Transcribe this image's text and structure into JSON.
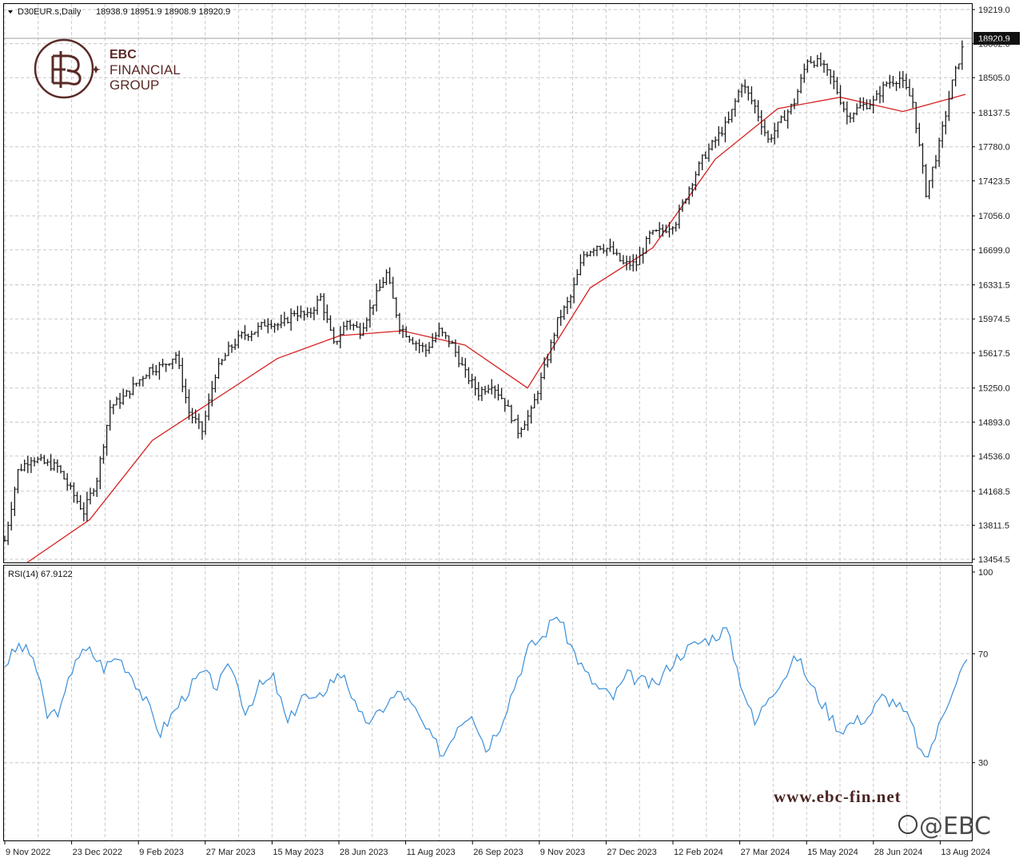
{
  "window": {
    "symbol_line": "D30EUR.s,Daily",
    "ohlc_line": "18938.9 18951.9 18908.9 18920.9",
    "menu_icon": "triangle-down-icon"
  },
  "logo": {
    "line1": "EBC",
    "line2": "FINANCIAL",
    "line3": "GROUP",
    "brand_color": "#5a2a27"
  },
  "current_price_label": "18920.9",
  "price_axis": {
    "ticks": [
      "19219.0",
      "18862.0",
      "18505.0",
      "18137.5",
      "17780.0",
      "17423.5",
      "17056.0",
      "16699.0",
      "16331.5",
      "15974.5",
      "15617.5",
      "15250.0",
      "14893.0",
      "14536.0",
      "14168.5",
      "13811.5",
      "13454.5"
    ]
  },
  "rsi_panel": {
    "label": "RSI(14) 67.9122",
    "ticks": [
      "100",
      "70",
      "30"
    ],
    "line_color": "#3b8fd9"
  },
  "time_axis": {
    "labels": [
      "9 Nov 2022",
      "23 Dec 2022",
      "9 Feb 2023",
      "27 Mar 2023",
      "15 May 2023",
      "28 Jun 2023",
      "11 Aug 2023",
      "26 Sep 2023",
      "9 Nov 2023",
      "27 Dec 2023",
      "12 Feb 2024",
      "27 Mar 2024",
      "15 May 2024",
      "28 Jun 2024",
      "13 Aug 2024"
    ]
  },
  "watermark": {
    "url": "www.ebc-fin.net",
    "corner": "@EBC"
  },
  "chart_data": {
    "type": "line",
    "title": "D30EUR.s,Daily",
    "price_range": [
      13454.5,
      19219.0
    ],
    "rsi_range": [
      0,
      100
    ],
    "colors": {
      "bars": "#1a1a1a",
      "ma": "#d62020",
      "rsi": "#3b8fd9",
      "grid": "#c8c8c8"
    },
    "series": [
      {
        "kind": "ohlc-bars",
        "points": [
          {
            "date": "9 Nov 2022",
            "close": 13650
          },
          {
            "date": "16 Nov 2022",
            "close": 14380
          },
          {
            "date": "23 Nov 2022",
            "close": 14520
          },
          {
            "date": "30 Nov 2022",
            "close": 14460
          },
          {
            "date": "7 Dec 2022",
            "close": 14420
          },
          {
            "date": "14 Dec 2022",
            "close": 14180
          },
          {
            "date": "23 Dec 2022",
            "close": 13950
          },
          {
            "date": "3 Jan 2023",
            "close": 14300
          },
          {
            "date": "13 Jan 2023",
            "close": 15050
          },
          {
            "date": "24 Jan 2023",
            "close": 15150
          },
          {
            "date": "2 Feb 2023",
            "close": 15300
          },
          {
            "date": "9 Feb 2023",
            "close": 15450
          },
          {
            "date": "20 Feb 2023",
            "close": 15480
          },
          {
            "date": "1 Mar 2023",
            "close": 15600
          },
          {
            "date": "10 Mar 2023",
            "close": 15000
          },
          {
            "date": "17 Mar 2023",
            "close": 14800
          },
          {
            "date": "27 Mar 2023",
            "close": 15400
          },
          {
            "date": "6 Apr 2023",
            "close": 15650
          },
          {
            "date": "18 Apr 2023",
            "close": 15800
          },
          {
            "date": "27 Apr 2023",
            "close": 15850
          },
          {
            "date": "5 May 2023",
            "close": 15950
          },
          {
            "date": "15 May 2023",
            "close": 15900
          },
          {
            "date": "24 May 2023",
            "close": 16050
          },
          {
            "date": "2 Jun 2023",
            "close": 16000
          },
          {
            "date": "12 Jun 2023",
            "close": 16200
          },
          {
            "date": "20 Jun 2023",
            "close": 15700
          },
          {
            "date": "28 Jun 2023",
            "close": 15950
          },
          {
            "date": "7 Jul 2023",
            "close": 15850
          },
          {
            "date": "18 Jul 2023",
            "close": 16150
          },
          {
            "date": "27 Jul 2023",
            "close": 16450
          },
          {
            "date": "4 Aug 2023",
            "close": 15900
          },
          {
            "date": "11 Aug 2023",
            "close": 15750
          },
          {
            "date": "22 Aug 2023",
            "close": 15650
          },
          {
            "date": "31 Aug 2023",
            "close": 15850
          },
          {
            "date": "11 Sep 2023",
            "close": 15700
          },
          {
            "date": "19 Sep 2023",
            "close": 15400
          },
          {
            "date": "26 Sep 2023",
            "close": 15200
          },
          {
            "date": "5 Oct 2023",
            "close": 15300
          },
          {
            "date": "13 Oct 2023",
            "close": 15100
          },
          {
            "date": "24 Oct 2023",
            "close": 14800
          },
          {
            "date": "1 Nov 2023",
            "close": 15000
          },
          {
            "date": "9 Nov 2023",
            "close": 15450
          },
          {
            "date": "20 Nov 2023",
            "close": 15950
          },
          {
            "date": "29 Nov 2023",
            "close": 16200
          },
          {
            "date": "7 Dec 2023",
            "close": 16650
          },
          {
            "date": "15 Dec 2023",
            "close": 16750
          },
          {
            "date": "27 Dec 2023",
            "close": 16700
          },
          {
            "date": "5 Jan 2024",
            "close": 16550
          },
          {
            "date": "16 Jan 2024",
            "close": 16550
          },
          {
            "date": "25 Jan 2024",
            "close": 16850
          },
          {
            "date": "2 Feb 2024",
            "close": 16900
          },
          {
            "date": "12 Feb 2024",
            "close": 17000
          },
          {
            "date": "21 Feb 2024",
            "close": 17350
          },
          {
            "date": "29 Feb 2024",
            "close": 17650
          },
          {
            "date": "8 Mar 2024",
            "close": 17850
          },
          {
            "date": "18 Mar 2024",
            "close": 18050
          },
          {
            "date": "27 Mar 2024",
            "close": 18450
          },
          {
            "date": "5 Apr 2024",
            "close": 18200
          },
          {
            "date": "16 Apr 2024",
            "close": 17850
          },
          {
            "date": "25 Apr 2024",
            "close": 18050
          },
          {
            "date": "6 May 2024",
            "close": 18250
          },
          {
            "date": "15 May 2024",
            "close": 18700
          },
          {
            "date": "24 May 2024",
            "close": 18650
          },
          {
            "date": "4 Jun 2024",
            "close": 18450
          },
          {
            "date": "13 Jun 2024",
            "close": 18100
          },
          {
            "date": "21 Jun 2024",
            "close": 18200
          },
          {
            "date": "28 Jun 2024",
            "close": 18250
          },
          {
            "date": "9 Jul 2024",
            "close": 18450
          },
          {
            "date": "18 Jul 2024",
            "close": 18500
          },
          {
            "date": "29 Jul 2024",
            "close": 18250
          },
          {
            "date": "5 Aug 2024",
            "close": 17300
          },
          {
            "date": "13 Aug 2024",
            "close": 17800
          },
          {
            "date": "22 Aug 2024",
            "close": 18450
          },
          {
            "date": "30 Aug 2024",
            "close": 18920.9
          }
        ]
      },
      {
        "kind": "moving-average",
        "points": [
          {
            "date": "9 Nov 2022",
            "value": 13420
          },
          {
            "date": "23 Dec 2022",
            "value": 13870
          },
          {
            "date": "9 Feb 2023",
            "value": 14700
          },
          {
            "date": "27 Mar 2023",
            "value": 15130
          },
          {
            "date": "15 May 2023",
            "value": 15560
          },
          {
            "date": "28 Jun 2023",
            "value": 15800
          },
          {
            "date": "11 Aug 2023",
            "value": 15850
          },
          {
            "date": "26 Sep 2023",
            "value": 15700
          },
          {
            "date": "9 Nov 2023",
            "value": 15250
          },
          {
            "date": "27 Dec 2023",
            "value": 16300
          },
          {
            "date": "12 Feb 2024",
            "value": 16720
          },
          {
            "date": "27 Mar 2024",
            "value": 17650
          },
          {
            "date": "15 May 2024",
            "value": 18180
          },
          {
            "date": "28 Jun 2024",
            "value": 18300
          },
          {
            "date": "13 Aug 2024",
            "value": 18150
          },
          {
            "date": "30 Aug 2024",
            "value": 18330
          }
        ]
      },
      {
        "kind": "rsi",
        "points": [
          {
            "date": "9 Nov 2022",
            "value": 66
          },
          {
            "date": "23 Nov 2022",
            "value": 73
          },
          {
            "date": "7 Dec 2022",
            "value": 69
          },
          {
            "date": "23 Dec 2022",
            "value": 47
          },
          {
            "date": "3 Jan 2023",
            "value": 50
          },
          {
            "date": "13 Jan 2023",
            "value": 69
          },
          {
            "date": "24 Jan 2023",
            "value": 71
          },
          {
            "date": "9 Feb 2023",
            "value": 65
          },
          {
            "date": "20 Feb 2023",
            "value": 69
          },
          {
            "date": "1 Mar 2023",
            "value": 62
          },
          {
            "date": "10 Mar 2023",
            "value": 52
          },
          {
            "date": "17 Mar 2023",
            "value": 41
          },
          {
            "date": "27 Mar 2023",
            "value": 49
          },
          {
            "date": "6 Apr 2023",
            "value": 57
          },
          {
            "date": "18 Apr 2023",
            "value": 63
          },
          {
            "date": "27 Apr 2023",
            "value": 58
          },
          {
            "date": "15 May 2023",
            "value": 66
          },
          {
            "date": "24 May 2023",
            "value": 49
          },
          {
            "date": "2 Jun 2023",
            "value": 58
          },
          {
            "date": "12 Jun 2023",
            "value": 61
          },
          {
            "date": "20 Jun 2023",
            "value": 44
          },
          {
            "date": "28 Jun 2023",
            "value": 55
          },
          {
            "date": "7 Jul 2023",
            "value": 52
          },
          {
            "date": "18 Jul 2023",
            "value": 60
          },
          {
            "date": "27 Jul 2023",
            "value": 63
          },
          {
            "date": "4 Aug 2023",
            "value": 47
          },
          {
            "date": "11 Aug 2023",
            "value": 45
          },
          {
            "date": "22 Aug 2023",
            "value": 52
          },
          {
            "date": "31 Aug 2023",
            "value": 56
          },
          {
            "date": "11 Sep 2023",
            "value": 49
          },
          {
            "date": "19 Sep 2023",
            "value": 40
          },
          {
            "date": "26 Sep 2023",
            "value": 33
          },
          {
            "date": "5 Oct 2023",
            "value": 44
          },
          {
            "date": "13 Oct 2023",
            "value": 49
          },
          {
            "date": "24 Oct 2023",
            "value": 35
          },
          {
            "date": "1 Nov 2023",
            "value": 44
          },
          {
            "date": "9 Nov 2023",
            "value": 58
          },
          {
            "date": "20 Nov 2023",
            "value": 72
          },
          {
            "date": "29 Nov 2023",
            "value": 76
          },
          {
            "date": "7 Dec 2023",
            "value": 85
          },
          {
            "date": "15 Dec 2023",
            "value": 73
          },
          {
            "date": "27 Dec 2023",
            "value": 63
          },
          {
            "date": "5 Jan 2024",
            "value": 57
          },
          {
            "date": "16 Jan 2024",
            "value": 54
          },
          {
            "date": "25 Jan 2024",
            "value": 62
          },
          {
            "date": "2 Feb 2024",
            "value": 60
          },
          {
            "date": "12 Feb 2024",
            "value": 58
          },
          {
            "date": "21 Feb 2024",
            "value": 66
          },
          {
            "date": "29 Feb 2024",
            "value": 71
          },
          {
            "date": "8 Mar 2024",
            "value": 74
          },
          {
            "date": "18 Mar 2024",
            "value": 76
          },
          {
            "date": "27 Mar 2024",
            "value": 79
          },
          {
            "date": "5 Apr 2024",
            "value": 60
          },
          {
            "date": "16 Apr 2024",
            "value": 44
          },
          {
            "date": "25 Apr 2024",
            "value": 55
          },
          {
            "date": "6 May 2024",
            "value": 61
          },
          {
            "date": "15 May 2024",
            "value": 69
          },
          {
            "date": "24 May 2024",
            "value": 58
          },
          {
            "date": "4 Jun 2024",
            "value": 50
          },
          {
            "date": "13 Jun 2024",
            "value": 42
          },
          {
            "date": "21 Jun 2024",
            "value": 45
          },
          {
            "date": "28 Jun 2024",
            "value": 47
          },
          {
            "date": "9 Jul 2024",
            "value": 54
          },
          {
            "date": "18 Jul 2024",
            "value": 52
          },
          {
            "date": "29 Jul 2024",
            "value": 45
          },
          {
            "date": "5 Aug 2024",
            "value": 30
          },
          {
            "date": "13 Aug 2024",
            "value": 43
          },
          {
            "date": "22 Aug 2024",
            "value": 58
          },
          {
            "date": "30 Aug 2024",
            "value": 67.9
          }
        ]
      }
    ]
  }
}
